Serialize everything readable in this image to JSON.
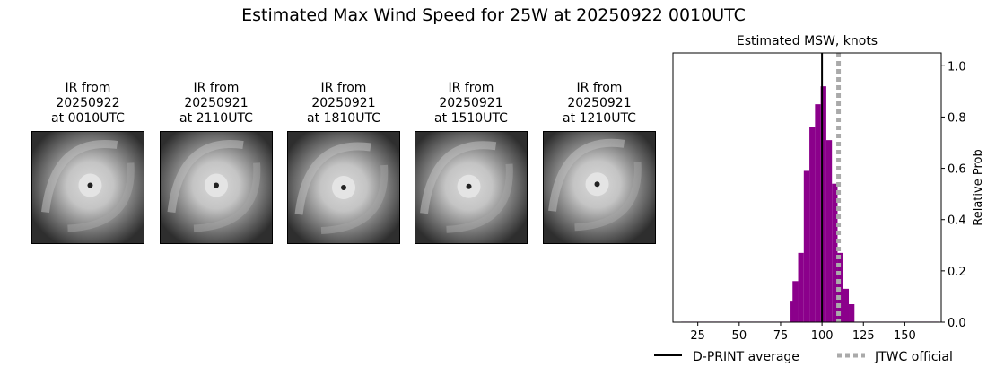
{
  "figure": {
    "title": "Estimated Max Wind Speed for 25W at 20250922 0010UTC"
  },
  "ir_panels": [
    {
      "line1": "IR from",
      "line2": "20250922",
      "line3": "at 0010UTC",
      "eye_x": 0.52,
      "eye_y": 0.48
    },
    {
      "line1": "IR from",
      "line2": "20250921",
      "line3": "at 2110UTC",
      "eye_x": 0.5,
      "eye_y": 0.48
    },
    {
      "line1": "IR from",
      "line2": "20250921",
      "line3": "at 1810UTC",
      "eye_x": 0.5,
      "eye_y": 0.5
    },
    {
      "line1": "IR from",
      "line2": "20250921",
      "line3": "at 1510UTC",
      "eye_x": 0.48,
      "eye_y": 0.49
    },
    {
      "line1": "IR from",
      "line2": "20250921",
      "line3": "at 1210UTC",
      "eye_x": 0.48,
      "eye_y": 0.47
    }
  ],
  "chart_data": {
    "type": "bar",
    "title": "Estimated MSW, knots",
    "xlabel": "",
    "ylabel": "Relative Prob",
    "xlim": [
      10,
      172
    ],
    "ylim": [
      0,
      1.05
    ],
    "xticks": [
      25,
      50,
      75,
      100,
      125,
      150
    ],
    "yticks": [
      0.0,
      0.2,
      0.4,
      0.6,
      0.8,
      1.0
    ],
    "ytick_labels": [
      "0.0",
      "0.2",
      "0.4",
      "0.6",
      "0.8",
      "1.0"
    ],
    "y_axis_side": "right",
    "bar_color": "#8b008b",
    "bin_width": 3.4,
    "bins": [
      {
        "x": 15.0,
        "value": 0.002
      },
      {
        "x": 18.4,
        "value": 0.002
      },
      {
        "x": 21.8,
        "value": 0.002
      },
      {
        "x": 25.2,
        "value": 0.002
      },
      {
        "x": 28.6,
        "value": 0.002
      },
      {
        "x": 32.0,
        "value": 0.002
      },
      {
        "x": 35.4,
        "value": 0.002
      },
      {
        "x": 38.8,
        "value": 0.002
      },
      {
        "x": 42.2,
        "value": 0.002
      },
      {
        "x": 45.6,
        "value": 0.002
      },
      {
        "x": 49.0,
        "value": 0.002
      },
      {
        "x": 52.4,
        "value": 0.002
      },
      {
        "x": 55.8,
        "value": 0.002
      },
      {
        "x": 59.2,
        "value": 0.002
      },
      {
        "x": 62.6,
        "value": 0.002
      },
      {
        "x": 66.0,
        "value": 0.002
      },
      {
        "x": 69.4,
        "value": 0.002
      },
      {
        "x": 72.8,
        "value": 0.002
      },
      {
        "x": 76.2,
        "value": 0.002
      },
      {
        "x": 79.6,
        "value": 0.002
      },
      {
        "x": 81.0,
        "value": 0.08
      },
      {
        "x": 82.2,
        "value": 0.16
      },
      {
        "x": 85.6,
        "value": 0.27
      },
      {
        "x": 89.0,
        "value": 0.59
      },
      {
        "x": 92.4,
        "value": 0.76
      },
      {
        "x": 95.8,
        "value": 0.85
      },
      {
        "x": 99.2,
        "value": 0.92
      },
      {
        "x": 102.6,
        "value": 0.71
      },
      {
        "x": 106.0,
        "value": 0.54
      },
      {
        "x": 109.4,
        "value": 0.27
      },
      {
        "x": 112.8,
        "value": 0.13
      },
      {
        "x": 116.2,
        "value": 0.07
      },
      {
        "x": 119.6,
        "value": 0.002
      },
      {
        "x": 123.0,
        "value": 0.002
      },
      {
        "x": 126.4,
        "value": 0.002
      },
      {
        "x": 129.8,
        "value": 0.002
      },
      {
        "x": 133.2,
        "value": 0.002
      },
      {
        "x": 136.6,
        "value": 0.002
      },
      {
        "x": 140.0,
        "value": 0.002
      },
      {
        "x": 143.4,
        "value": 0.002
      },
      {
        "x": 146.8,
        "value": 0.002
      },
      {
        "x": 150.2,
        "value": 0.002
      },
      {
        "x": 153.6,
        "value": 0.002
      },
      {
        "x": 157.0,
        "value": 0.002
      },
      {
        "x": 160.4,
        "value": 0.002
      },
      {
        "x": 163.8,
        "value": 0.002
      },
      {
        "x": 167.2,
        "value": 0.002
      }
    ],
    "dprint_average": 100,
    "jtwc_official": 110,
    "legend": {
      "placement": "below",
      "dprint_label": "D-PRINT average",
      "jtwc_label": "JTWC official",
      "dprint_color": "#000000",
      "jtwc_color": "#aaaaaa"
    }
  }
}
